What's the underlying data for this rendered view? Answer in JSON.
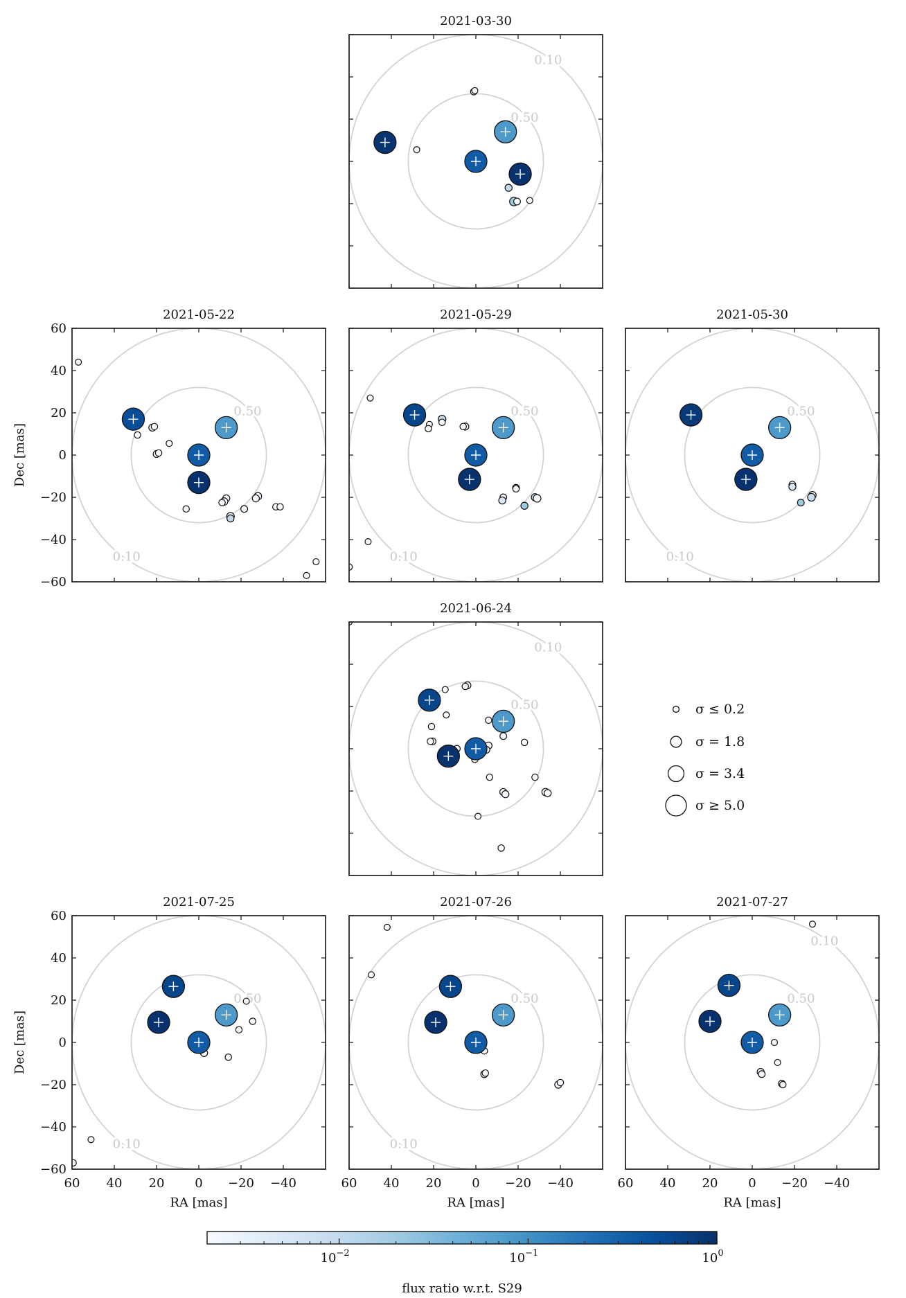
{
  "chart_data": {
    "type": "scatter",
    "description_axes": {
      "xlabel": "RA [mas]",
      "ylabel": "Dec [mas]",
      "xlim": [
        60,
        -60
      ],
      "ylim": [
        -60,
        60
      ],
      "xticks": [
        60,
        40,
        20,
        0,
        -20,
        -40
      ],
      "yticks": [
        60,
        40,
        20,
        0,
        -20,
        -40,
        -60
      ],
      "contours": [
        {
          "label": "0.50",
          "radius": 32
        },
        {
          "label": "0.10",
          "radius": 60
        }
      ]
    },
    "panels": [
      {
        "title": "2021-03-30",
        "show_yticks": false,
        "show_xticks": false,
        "stars": [
          {
            "x": 0,
            "y": 0,
            "ratio": 0.35
          },
          {
            "x": -14,
            "y": 14,
            "ratio": 0.08
          },
          {
            "x": 43,
            "y": 9,
            "ratio": 0.9
          },
          {
            "x": -21,
            "y": -6,
            "ratio": 0.95
          }
        ],
        "sources": [
          {
            "x": 1,
            "y": 33,
            "sigma": 0.3,
            "ratio": 0.002
          },
          {
            "x": 0.5,
            "y": 33.5,
            "sigma": 0.2,
            "ratio": 0.002
          },
          {
            "x": 28,
            "y": 5.5,
            "sigma": 0.2,
            "ratio": 0.002
          },
          {
            "x": -15.5,
            "y": -12.5,
            "sigma": 0.5,
            "ratio": 0.01
          },
          {
            "x": -18,
            "y": -19,
            "sigma": 1.0,
            "ratio": 0.02
          },
          {
            "x": -19.5,
            "y": -19,
            "sigma": 0.4,
            "ratio": 0.002
          },
          {
            "x": -25.5,
            "y": -18.5,
            "sigma": 0.2,
            "ratio": 0.002
          }
        ]
      },
      {
        "title": "2021-05-22",
        "show_yticks": true,
        "show_xticks": false,
        "stars": [
          {
            "x": 0,
            "y": 0,
            "ratio": 0.35
          },
          {
            "x": -13,
            "y": 13,
            "ratio": 0.08
          },
          {
            "x": 31,
            "y": 17,
            "ratio": 0.5
          },
          {
            "x": 0,
            "y": -13,
            "ratio": 0.95
          }
        ],
        "sources": [
          {
            "x": 57,
            "y": 44,
            "sigma": 0.2,
            "ratio": 0.002
          },
          {
            "x": 22,
            "y": 13,
            "sigma": 0.5,
            "ratio": 0.002
          },
          {
            "x": 21,
            "y": 13.5,
            "sigma": 0.3,
            "ratio": 0.002
          },
          {
            "x": 29,
            "y": 9.5,
            "sigma": 0.3,
            "ratio": 0.002
          },
          {
            "x": 20,
            "y": 0.5,
            "sigma": 0.4,
            "ratio": 0.002
          },
          {
            "x": 19,
            "y": 1,
            "sigma": 0.3,
            "ratio": 0.002
          },
          {
            "x": 14,
            "y": 5.5,
            "sigma": 0.2,
            "ratio": 0.002
          },
          {
            "x": -13,
            "y": -20.5,
            "sigma": 0.5,
            "ratio": 0.002
          },
          {
            "x": -12,
            "y": -22,
            "sigma": 0.6,
            "ratio": 0.002
          },
          {
            "x": -11,
            "y": -22.5,
            "sigma": 0.3,
            "ratio": 0.002
          },
          {
            "x": -15,
            "y": -29,
            "sigma": 0.7,
            "ratio": 0.002
          },
          {
            "x": -15,
            "y": -30,
            "sigma": 0.5,
            "ratio": 0.01
          },
          {
            "x": -21.5,
            "y": -25.5,
            "sigma": 0.4,
            "ratio": 0.002
          },
          {
            "x": 6,
            "y": -25.5,
            "sigma": 0.3,
            "ratio": 0.002
          },
          {
            "x": -28,
            "y": -19.5,
            "sigma": 0.6,
            "ratio": 0.002
          },
          {
            "x": -27,
            "y": -20.5,
            "sigma": 0.5,
            "ratio": 0.002
          },
          {
            "x": -36.5,
            "y": -24.5,
            "sigma": 0.3,
            "ratio": 0.002
          },
          {
            "x": -38.5,
            "y": -24.5,
            "sigma": 0.3,
            "ratio": 0.002
          },
          {
            "x": -51,
            "y": -57,
            "sigma": 0.2,
            "ratio": 0.002
          },
          {
            "x": -55.5,
            "y": -50.5,
            "sigma": 0.2,
            "ratio": 0.002
          }
        ]
      },
      {
        "title": "2021-05-29",
        "show_yticks": false,
        "show_xticks": false,
        "stars": [
          {
            "x": 0,
            "y": 0,
            "ratio": 0.35
          },
          {
            "x": -13,
            "y": 13,
            "ratio": 0.08
          },
          {
            "x": 29,
            "y": 19,
            "ratio": 0.6
          },
          {
            "x": 3,
            "y": -11.5,
            "ratio": 0.95
          }
        ],
        "sources": [
          {
            "x": 50,
            "y": 27,
            "sigma": 0.2,
            "ratio": 0.002
          },
          {
            "x": 16,
            "y": 17,
            "sigma": 0.7,
            "ratio": 0.01
          },
          {
            "x": 16,
            "y": 15.5,
            "sigma": 0.3,
            "ratio": 0.002
          },
          {
            "x": 22,
            "y": 14.5,
            "sigma": 0.2,
            "ratio": 0.002
          },
          {
            "x": 22.5,
            "y": 12.5,
            "sigma": 0.3,
            "ratio": 0.002
          },
          {
            "x": 5,
            "y": 13.5,
            "sigma": 0.5,
            "ratio": 0.002
          },
          {
            "x": 6,
            "y": 13.5,
            "sigma": 0.3,
            "ratio": 0.002
          },
          {
            "x": -13,
            "y": -20,
            "sigma": 0.4,
            "ratio": 0.002
          },
          {
            "x": -12.5,
            "y": -21.5,
            "sigma": 0.5,
            "ratio": 0.005
          },
          {
            "x": -19,
            "y": -15.5,
            "sigma": 0.4,
            "ratio": 0.002
          },
          {
            "x": -19,
            "y": -16,
            "sigma": 0.3,
            "ratio": 0.002
          },
          {
            "x": -28,
            "y": -20,
            "sigma": 0.6,
            "ratio": 0.01
          },
          {
            "x": -29,
            "y": -20.5,
            "sigma": 0.7,
            "ratio": 0.002
          },
          {
            "x": -23,
            "y": -24,
            "sigma": 0.5,
            "ratio": 0.02
          },
          {
            "x": 51,
            "y": -41,
            "sigma": 0.2,
            "ratio": 0.002
          },
          {
            "x": 60,
            "y": -53,
            "sigma": 0.3,
            "ratio": 0.002
          }
        ]
      },
      {
        "title": "2021-05-30",
        "show_yticks": false,
        "show_xticks": false,
        "stars": [
          {
            "x": 0,
            "y": 0,
            "ratio": 0.35
          },
          {
            "x": -13,
            "y": 13,
            "ratio": 0.08
          },
          {
            "x": 29,
            "y": 19,
            "ratio": 0.8
          },
          {
            "x": 3,
            "y": -11.5,
            "ratio": 0.95
          }
        ],
        "sources": [
          {
            "x": -19,
            "y": -14,
            "sigma": 0.4,
            "ratio": 0.002
          },
          {
            "x": -19,
            "y": -15,
            "sigma": 0.5,
            "ratio": 0.005
          },
          {
            "x": -28.5,
            "y": -19,
            "sigma": 0.6,
            "ratio": 0.002
          },
          {
            "x": -28,
            "y": -20,
            "sigma": 0.7,
            "ratio": 0.008
          },
          {
            "x": -23,
            "y": -22.5,
            "sigma": 0.4,
            "ratio": 0.02
          }
        ]
      },
      {
        "title": "2021-06-24",
        "show_yticks": false,
        "show_xticks": false,
        "stars": [
          {
            "x": 0,
            "y": 0,
            "ratio": 0.35
          },
          {
            "x": -13,
            "y": 13,
            "ratio": 0.08
          },
          {
            "x": 22,
            "y": 23,
            "ratio": 0.6
          },
          {
            "x": 13,
            "y": -3.5,
            "ratio": 0.95
          }
        ],
        "sources": [
          {
            "x": 60,
            "y": 60,
            "sigma": 0.2,
            "ratio": 0.002
          },
          {
            "x": 4,
            "y": 30,
            "sigma": 0.5,
            "ratio": 0.002
          },
          {
            "x": 5,
            "y": 29.5,
            "sigma": 0.3,
            "ratio": 0.002
          },
          {
            "x": 14.5,
            "y": 28,
            "sigma": 0.2,
            "ratio": 0.002
          },
          {
            "x": 14,
            "y": 16,
            "sigma": 0.2,
            "ratio": 0.002
          },
          {
            "x": 21,
            "y": 10.5,
            "sigma": 0.3,
            "ratio": 0.002
          },
          {
            "x": 20.5,
            "y": 3.5,
            "sigma": 0.4,
            "ratio": 0.002
          },
          {
            "x": 21.5,
            "y": 3.5,
            "sigma": 0.3,
            "ratio": 0.002
          },
          {
            "x": -6,
            "y": 13.5,
            "sigma": 0.3,
            "ratio": 0.002
          },
          {
            "x": -13,
            "y": 6,
            "sigma": 0.4,
            "ratio": 0.002
          },
          {
            "x": -6,
            "y": 1.5,
            "sigma": 0.5,
            "ratio": 0.002
          },
          {
            "x": -5,
            "y": -0.5,
            "sigma": 0.4,
            "ratio": 0.002
          },
          {
            "x": 0.5,
            "y": -5,
            "sigma": 0.3,
            "ratio": 0.002
          },
          {
            "x": 9,
            "y": 0,
            "sigma": 0.4,
            "ratio": 0.002
          },
          {
            "x": -23,
            "y": 3,
            "sigma": 0.3,
            "ratio": 0.002
          },
          {
            "x": -6.5,
            "y": -13.5,
            "sigma": 0.3,
            "ratio": 0.002
          },
          {
            "x": -28,
            "y": -13.5,
            "sigma": 0.3,
            "ratio": 0.002
          },
          {
            "x": -13,
            "y": -20.5,
            "sigma": 0.5,
            "ratio": 0.002
          },
          {
            "x": -14,
            "y": -21.5,
            "sigma": 0.5,
            "ratio": 0.002
          },
          {
            "x": -33,
            "y": -20.5,
            "sigma": 0.6,
            "ratio": 0.002
          },
          {
            "x": -34,
            "y": -21,
            "sigma": 0.5,
            "ratio": 0.002
          },
          {
            "x": -1,
            "y": -32,
            "sigma": 0.2,
            "ratio": 0.002
          },
          {
            "x": -12,
            "y": -47,
            "sigma": 0.3,
            "ratio": 0.002
          }
        ]
      },
      {
        "title": "2021-07-25",
        "show_yticks": true,
        "show_xticks": true,
        "stars": [
          {
            "x": 0,
            "y": 0,
            "ratio": 0.35
          },
          {
            "x": -13,
            "y": 13,
            "ratio": 0.08
          },
          {
            "x": 12,
            "y": 26.5,
            "ratio": 0.6
          },
          {
            "x": 19,
            "y": 9.5,
            "ratio": 0.95
          }
        ],
        "sources": [
          {
            "x": -22.5,
            "y": 19.5,
            "sigma": 0.2,
            "ratio": 0.002
          },
          {
            "x": -25.5,
            "y": 10,
            "sigma": 0.3,
            "ratio": 0.002
          },
          {
            "x": -19,
            "y": 6,
            "sigma": 0.3,
            "ratio": 0.002
          },
          {
            "x": -2.5,
            "y": -5,
            "sigma": 0.5,
            "ratio": 0.002
          },
          {
            "x": -14,
            "y": -7,
            "sigma": 0.3,
            "ratio": 0.002
          },
          {
            "x": 51,
            "y": -46,
            "sigma": 0.2,
            "ratio": 0.002
          },
          {
            "x": 59.5,
            "y": -57,
            "sigma": 0.3,
            "ratio": 0.002
          }
        ]
      },
      {
        "title": "2021-07-26",
        "show_yticks": false,
        "show_xticks": true,
        "stars": [
          {
            "x": 0,
            "y": 0,
            "ratio": 0.35
          },
          {
            "x": -13,
            "y": 13,
            "ratio": 0.08
          },
          {
            "x": 12,
            "y": 26.5,
            "ratio": 0.6
          },
          {
            "x": 19,
            "y": 9.5,
            "ratio": 0.95
          }
        ],
        "sources": [
          {
            "x": 42,
            "y": 54.5,
            "sigma": 0.2,
            "ratio": 0.002
          },
          {
            "x": 49.5,
            "y": 32,
            "sigma": 0.2,
            "ratio": 0.002
          },
          {
            "x": -4,
            "y": -4,
            "sigma": 0.3,
            "ratio": 0.002
          },
          {
            "x": -4,
            "y": -15,
            "sigma": 0.5,
            "ratio": 0.002
          },
          {
            "x": -4.5,
            "y": -14.5,
            "sigma": 0.3,
            "ratio": 0.002
          },
          {
            "x": -39,
            "y": -20,
            "sigma": 0.5,
            "ratio": 0.002
          },
          {
            "x": -40,
            "y": -19,
            "sigma": 0.3,
            "ratio": 0.002
          }
        ]
      },
      {
        "title": "2021-07-27",
        "show_yticks": false,
        "show_xticks": true,
        "stars": [
          {
            "x": 0,
            "y": 0,
            "ratio": 0.35
          },
          {
            "x": -13,
            "y": 13,
            "ratio": 0.08
          },
          {
            "x": 11,
            "y": 27,
            "ratio": 0.6
          },
          {
            "x": 20,
            "y": 10,
            "ratio": 0.95
          }
        ],
        "sources": [
          {
            "x": -28.5,
            "y": 56,
            "sigma": 0.2,
            "ratio": 0.002
          },
          {
            "x": -10.5,
            "y": 0,
            "sigma": 0.2,
            "ratio": 0.002
          },
          {
            "x": -12,
            "y": -9.5,
            "sigma": 0.2,
            "ratio": 0.002
          },
          {
            "x": -4,
            "y": -14,
            "sigma": 0.5,
            "ratio": 0.002
          },
          {
            "x": -4.5,
            "y": -15,
            "sigma": 0.4,
            "ratio": 0.002
          },
          {
            "x": -14,
            "y": -19.5,
            "sigma": 0.4,
            "ratio": 0.002
          },
          {
            "x": -14.5,
            "y": -20,
            "sigma": 0.3,
            "ratio": 0.002
          }
        ]
      }
    ],
    "legend": {
      "entries": [
        {
          "label": "σ ≤ 0.2",
          "sigma": 0.2
        },
        {
          "label": "σ = 1.8",
          "sigma": 1.8
        },
        {
          "label": "σ = 3.4",
          "sigma": 3.4
        },
        {
          "label": "σ ≥ 5.0",
          "sigma": 5.0
        }
      ]
    },
    "colorbar": {
      "label": "flux ratio w.r.t. S29",
      "scale": "log",
      "range": [
        0.002,
        1.0
      ],
      "ticks": [
        {
          "base": "10",
          "exp": "−2",
          "value": 0.01
        },
        {
          "base": "10",
          "exp": "−1",
          "value": 0.1
        },
        {
          "base": "10",
          "exp": "0",
          "value": 1
        }
      ]
    }
  }
}
